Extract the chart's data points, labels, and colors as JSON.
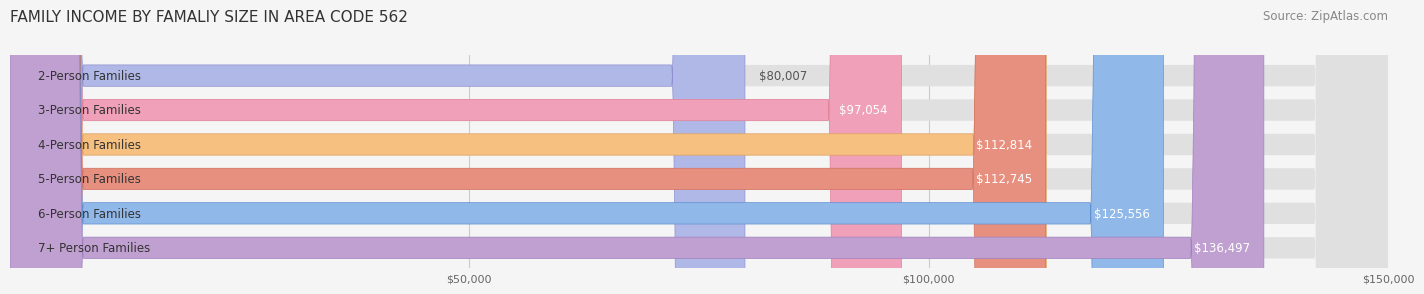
{
  "title": "FAMILY INCOME BY FAMALIY SIZE IN AREA CODE 562",
  "source": "Source: ZipAtlas.com",
  "categories": [
    "2-Person Families",
    "3-Person Families",
    "4-Person Families",
    "5-Person Families",
    "6-Person Families",
    "7+ Person Families"
  ],
  "values": [
    80007,
    97054,
    112814,
    112745,
    125556,
    136497
  ],
  "labels": [
    "$80,007",
    "$97,054",
    "$112,814",
    "$112,745",
    "$125,556",
    "$136,497"
  ],
  "bar_colors": [
    "#b0b8e8",
    "#f0a0b8",
    "#f5c080",
    "#e89080",
    "#90b8e8",
    "#c0a0d0"
  ],
  "bar_edge_colors": [
    "#9090d0",
    "#e08098",
    "#e0a060",
    "#d07060",
    "#6090d0",
    "#a080c0"
  ],
  "xlim": [
    0,
    150000
  ],
  "xticks": [
    0,
    50000,
    100000,
    150000
  ],
  "xticklabels": [
    "",
    "$50,000",
    "$100,000",
    "$150,000"
  ],
  "bg_color": "#f5f5f5",
  "title_fontsize": 11,
  "label_fontsize": 8.5,
  "source_fontsize": 8.5,
  "bar_height": 0.62,
  "label_white_threshold": 90000
}
